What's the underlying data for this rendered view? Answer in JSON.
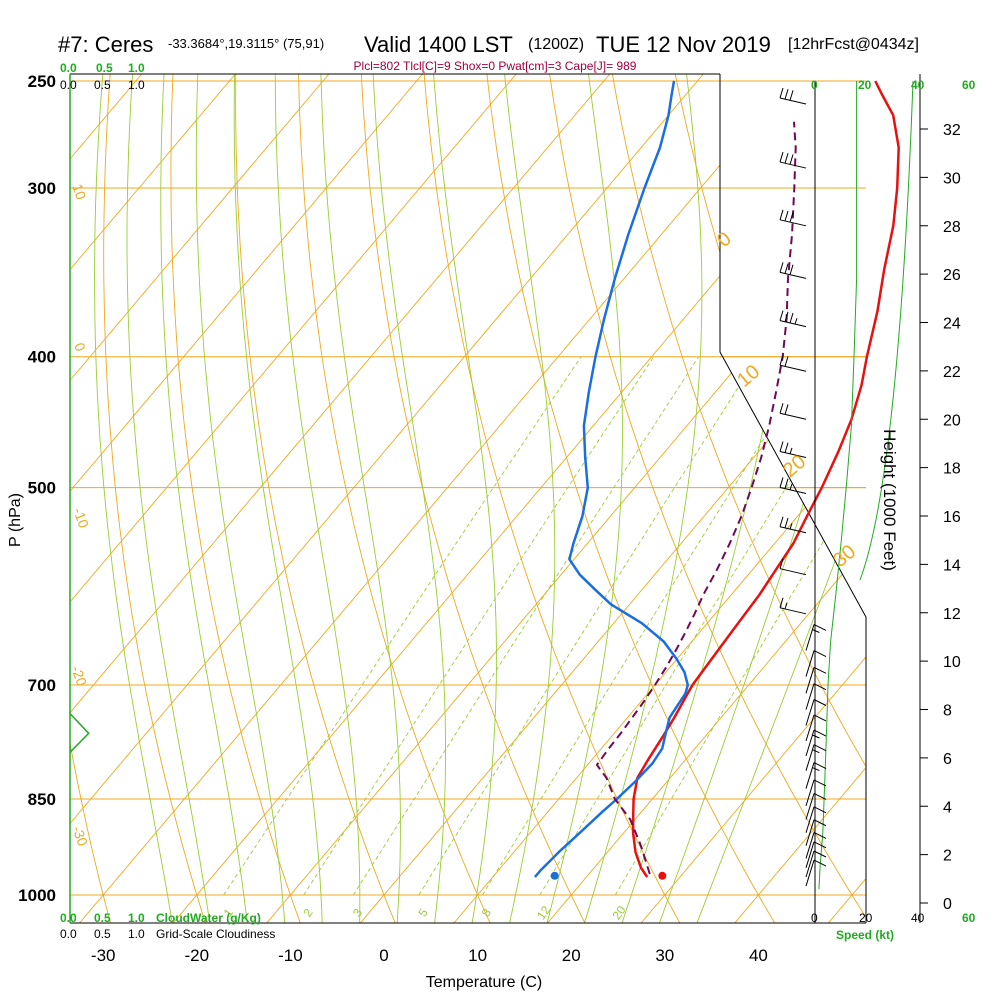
{
  "header": {
    "station": "#7: Ceres",
    "coords": "-33.3684°,19.3115° (75,91)",
    "valid": "Valid 1400 LST",
    "utc": "(1200Z)",
    "date": "TUE 12 Nov 2019",
    "forecast": "[12hrFcst@0434z]",
    "params": "Plcl=802 Tlcl[C]=9 Shox=0 Pwat[cm]=3 Cape[J]= 989"
  },
  "colors": {
    "temperature": "#e81010",
    "dewpoint": "#1a6ee0",
    "parcel": "#6e0a55",
    "isotherm": "#f0a81e",
    "dry_adiabat": "#f0a81e",
    "moist_adiabat": "#9acd32",
    "mixing_ratio": "#9acd32",
    "cloud_water": "#22aa22"
  },
  "chart_data": {
    "type": "line",
    "title": "",
    "xlabel": "Temperature (C)",
    "ylabel": "P (hPa)",
    "y2label": "Height (1000 Feet)",
    "xlim": [
      -33,
      52
    ],
    "ylim": [
      1000,
      250
    ],
    "x_ticks": [
      "-30",
      "-20",
      "-10",
      "0",
      "10",
      "20",
      "30",
      "40"
    ],
    "y_ticks": [
      "250",
      "300",
      "400",
      "500",
      "700",
      "850",
      "1000"
    ],
    "height_ticks": [
      "0",
      "2",
      "4",
      "6",
      "8",
      "10",
      "12",
      "14",
      "16",
      "18",
      "20",
      "22",
      "24",
      "26",
      "28",
      "30",
      "32"
    ],
    "isotherm_labels": [
      "10",
      "0",
      "-10",
      "-20",
      "-30",
      "0",
      "10",
      "20",
      "30"
    ],
    "mixing_ratio_labels": [
      "1",
      "2",
      "3",
      "5",
      "8",
      "12",
      "20"
    ],
    "cloud_axis": {
      "ticks_top_green": [
        "0.0",
        "0.5",
        "1.0"
      ],
      "ticks_top_black": [
        "0.0",
        "0.5",
        "1.0"
      ],
      "ticks_bottom_green": [
        "0.0",
        "0.5",
        "1.0"
      ],
      "ticks_bottom_black": [
        "0.0",
        "0.5",
        "1.0"
      ],
      "label_cloudwater": "CloudWater (g/Kg)",
      "label_cloudiness": "Grid-Scale Cloudiness"
    },
    "wind_axis": {
      "ticks_black": [
        "0",
        "20",
        "40"
      ],
      "ticks_green": [
        "0",
        "20",
        "40",
        "60"
      ],
      "label": "Speed (kt)"
    },
    "series": [
      {
        "name": "Temperature",
        "points": [
          [
            26.5,
            970
          ],
          [
            25,
            955
          ],
          [
            23,
            930
          ],
          [
            21,
            900
          ],
          [
            19.5,
            875
          ],
          [
            18,
            850
          ],
          [
            16.5,
            820
          ],
          [
            16,
            795
          ],
          [
            15.5,
            765
          ],
          [
            15,
            740
          ],
          [
            14.5,
            720
          ],
          [
            14,
            700
          ],
          [
            13.8,
            680
          ],
          [
            13.6,
            660
          ],
          [
            13.4,
            640
          ],
          [
            13.2,
            620
          ],
          [
            13,
            600
          ],
          [
            12.5,
            575
          ],
          [
            12,
            550
          ],
          [
            11,
            525
          ],
          [
            10,
            500
          ],
          [
            8.5,
            470
          ],
          [
            7,
            445
          ],
          [
            5,
            420
          ],
          [
            3,
            400
          ],
          [
            0,
            370
          ],
          [
            -3,
            345
          ],
          [
            -6,
            320
          ],
          [
            -9,
            300
          ],
          [
            -12.5,
            280
          ],
          [
            -16,
            265
          ],
          [
            -19,
            256
          ],
          [
            -21,
            250
          ]
        ]
      },
      {
        "name": "Dewpoint",
        "points": [
          [
            14.5,
            970
          ],
          [
            14.5,
            960
          ],
          [
            14.8,
            930
          ],
          [
            15.3,
            900
          ],
          [
            15.8,
            870
          ],
          [
            16.2,
            850
          ],
          [
            16.6,
            825
          ],
          [
            16.8,
            800
          ],
          [
            16.5,
            780
          ],
          [
            15.5,
            760
          ],
          [
            14.5,
            740
          ],
          [
            14,
            710
          ],
          [
            13.5,
            700
          ],
          [
            12,
            685
          ],
          [
            10,
            670
          ],
          [
            7,
            650
          ],
          [
            3,
            630
          ],
          [
            -2,
            610
          ],
          [
            -5,
            595
          ],
          [
            -8,
            580
          ],
          [
            -10.5,
            565
          ],
          [
            -11.5,
            550
          ],
          [
            -13,
            525
          ],
          [
            -15,
            500
          ],
          [
            -18,
            475
          ],
          [
            -21,
            450
          ],
          [
            -23.5,
            425
          ],
          [
            -26,
            400
          ],
          [
            -28.5,
            375
          ],
          [
            -31,
            350
          ],
          [
            -33.5,
            325
          ],
          [
            -36,
            300
          ],
          [
            -38,
            280
          ],
          [
            -40,
            265
          ],
          [
            -41.5,
            256
          ],
          [
            -42.5,
            250
          ]
        ]
      },
      {
        "name": "Parcel",
        "points": [
          [
            26.5,
            965
          ],
          [
            23,
            920
          ],
          [
            19.5,
            880
          ],
          [
            16,
            850
          ],
          [
            13.2,
            820
          ],
          [
            11,
            802
          ],
          [
            10.8,
            780
          ],
          [
            10.7,
            760
          ],
          [
            10.5,
            740
          ],
          [
            10.3,
            720
          ],
          [
            10,
            700
          ],
          [
            9.6,
            680
          ],
          [
            9.1,
            660
          ],
          [
            8.5,
            640
          ],
          [
            7.8,
            620
          ],
          [
            7,
            600
          ],
          [
            6.2,
            575
          ],
          [
            5.2,
            550
          ],
          [
            4,
            525
          ],
          [
            2.5,
            500
          ],
          [
            0.8,
            475
          ],
          [
            -1.2,
            450
          ],
          [
            -3.5,
            425
          ],
          [
            -6,
            400
          ],
          [
            -9,
            375
          ],
          [
            -12.5,
            350
          ],
          [
            -16,
            325
          ],
          [
            -20,
            300
          ],
          [
            -23.5,
            280
          ],
          [
            -26,
            268
          ]
        ]
      }
    ],
    "surface_markers": [
      {
        "name": "Temperature",
        "x": 28,
        "y": 968
      },
      {
        "name": "Dewpoint",
        "x": 16.5,
        "y": 968
      }
    ],
    "cloud_water_profile": [
      [
        0,
        735
      ],
      [
        0.55,
        760
      ],
      [
        0,
        785
      ]
    ],
    "wind_profile": {
      "speed_kt": [
        [
          16,
          250
        ],
        [
          16,
          300
        ],
        [
          16,
          350
        ],
        [
          15,
          400
        ],
        [
          14,
          450
        ],
        [
          12,
          500
        ],
        [
          10,
          550
        ],
        [
          8,
          600
        ],
        [
          6,
          650
        ],
        [
          5,
          700
        ],
        [
          4.5,
          750
        ],
        [
          4,
          800
        ],
        [
          3.5,
          850
        ],
        [
          3,
          900
        ],
        [
          2,
          950
        ],
        [
          1.5,
          990
        ]
      ],
      "barbs": [
        {
          "p": 260,
          "spd": 30
        },
        {
          "p": 290,
          "spd": 30
        },
        {
          "p": 320,
          "spd": 30
        },
        {
          "p": 350,
          "spd": 30
        },
        {
          "p": 380,
          "spd": 25
        },
        {
          "p": 410,
          "spd": 20
        },
        {
          "p": 445,
          "spd": 20
        },
        {
          "p": 475,
          "spd": 15
        },
        {
          "p": 505,
          "spd": 15
        },
        {
          "p": 540,
          "spd": 15
        },
        {
          "p": 580,
          "spd": 10
        },
        {
          "p": 620,
          "spd": 5
        },
        {
          "p": 660,
          "spd": 5
        },
        {
          "p": 690,
          "spd": 10
        },
        {
          "p": 710,
          "spd": 10
        },
        {
          "p": 730,
          "spd": 10
        },
        {
          "p": 750,
          "spd": 10
        },
        {
          "p": 770,
          "spd": 10
        },
        {
          "p": 790,
          "spd": 5
        },
        {
          "p": 810,
          "spd": 5
        },
        {
          "p": 835,
          "spd": 5
        },
        {
          "p": 860,
          "spd": 10
        },
        {
          "p": 880,
          "spd": 10
        },
        {
          "p": 900,
          "spd": 10
        },
        {
          "p": 920,
          "spd": 10
        },
        {
          "p": 940,
          "spd": 10
        },
        {
          "p": 955,
          "spd": 10
        },
        {
          "p": 970,
          "spd": 10
        },
        {
          "p": 985,
          "spd": 10
        }
      ]
    }
  }
}
